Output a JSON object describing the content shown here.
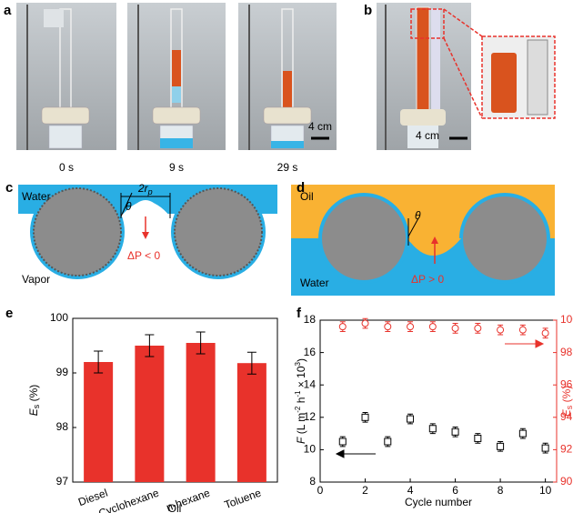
{
  "panel_labels": [
    "a",
    "b",
    "c",
    "d",
    "e",
    "f"
  ],
  "photo_captions": [
    "0 s",
    "9 s",
    "29 s"
  ],
  "scale_bars": [
    "4 cm",
    "4 cm"
  ],
  "diagram_c": {
    "top": "Water",
    "bottom": "Vapor",
    "width": "2r",
    "width_sub": "p",
    "angle": "θ",
    "pressure": "ΔP < 0"
  },
  "diagram_d": {
    "top": "Oil",
    "bottom": "Water",
    "angle": "θ",
    "pressure": "ΔP > 0"
  },
  "chart_data": [
    {
      "type": "bar",
      "y_label_main": "E",
      "y_label_sub": "s",
      "y_label_unit": " (%)",
      "x_label": "Oil",
      "categories": [
        "Diesel",
        "Cyclohexane",
        "n-hexane",
        "Toluene"
      ],
      "values": [
        99.2,
        99.5,
        99.55,
        99.18
      ],
      "errors": [
        0.2,
        0.2,
        0.2,
        0.2
      ],
      "color": "#e8322b",
      "ylim": [
        97,
        100
      ],
      "yticks": [
        97,
        98,
        99,
        100
      ]
    },
    {
      "type": "scatter",
      "x_label": "Cycle number",
      "y_label_parts": [
        "F",
        " (L m",
        "-2",
        " h",
        "-1",
        " × 10",
        "3",
        ")"
      ],
      "y2_label_main": "E",
      "y2_label_sub": "s",
      "y2_label_unit": " (%)",
      "xlim": [
        0,
        10.5
      ],
      "xticks": [
        0,
        2,
        4,
        6,
        8,
        10
      ],
      "ylim": [
        8,
        18
      ],
      "yticks": [
        8,
        10,
        12,
        14,
        16,
        18
      ],
      "y2lim": [
        90,
        100
      ],
      "y2ticks": [
        90,
        92,
        94,
        96,
        98,
        100
      ],
      "series": [
        {
          "name": "F",
          "color": "#000000",
          "x": [
            1,
            2,
            3,
            4,
            5,
            6,
            7,
            8,
            9,
            10
          ],
          "values": [
            10.5,
            12.0,
            10.5,
            11.9,
            11.3,
            11.1,
            10.7,
            10.2,
            11.0,
            10.1
          ],
          "errors": [
            0.3,
            0.3,
            0.3,
            0.3,
            0.3,
            0.3,
            0.3,
            0.3,
            0.3,
            0.3
          ]
        },
        {
          "name": "Es",
          "color": "#e8322b",
          "axis": "y2",
          "x": [
            1,
            2,
            3,
            4,
            5,
            6,
            7,
            8,
            9,
            10
          ],
          "values": [
            99.6,
            99.8,
            99.6,
            99.6,
            99.6,
            99.5,
            99.5,
            99.4,
            99.4,
            99.2
          ],
          "errors": [
            0.3,
            0.3,
            0.3,
            0.3,
            0.3,
            0.3,
            0.3,
            0.3,
            0.3,
            0.3
          ]
        }
      ]
    }
  ]
}
